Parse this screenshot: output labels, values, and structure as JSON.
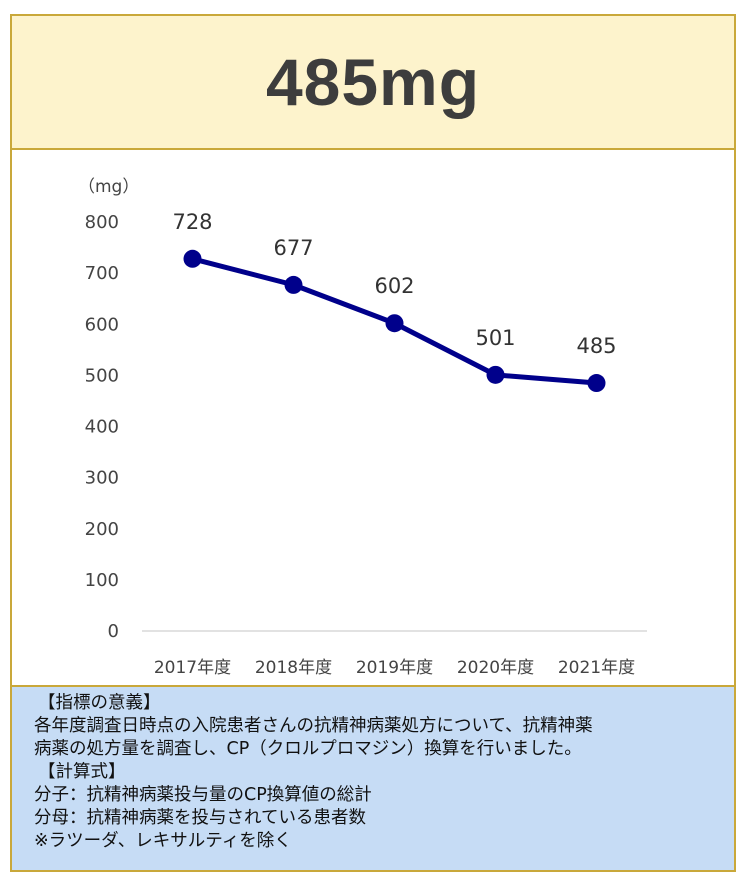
{
  "header": {
    "value": "485mg",
    "background": "#fdf3cc",
    "border": "#c9a83a"
  },
  "chart_data": {
    "type": "line",
    "unit_label": "（mg）",
    "categories": [
      "2017年度",
      "2018年度",
      "2019年度",
      "2020年度",
      "2021年度"
    ],
    "series": [
      {
        "values": [
          728,
          677,
          602,
          501,
          485
        ],
        "color": "#00008b"
      }
    ],
    "data_labels": [
      "728",
      "677",
      "602",
      "501",
      "485"
    ],
    "ylim": [
      0,
      800
    ],
    "yticks": [
      "0",
      "100",
      "200",
      "300",
      "400",
      "500",
      "600",
      "700",
      "800"
    ],
    "grid": false,
    "legend": "none"
  },
  "note": {
    "heading1": "【指標の意義】",
    "line1": "各年度調査日時点の入院患者さんの抗精神病薬処方について、抗精神薬",
    "line2": "病薬の処方量を調査し、CP（クロルプロマジン）換算を行いました。",
    "heading2": "【計算式】",
    "line3": "分子：抗精神病薬投与量のCP換算値の総計",
    "line4": "分母：抗精神病薬を投与されている患者数",
    "line5": "※ラツーダ、レキサルティを除く",
    "background": "#c6dcf5"
  }
}
